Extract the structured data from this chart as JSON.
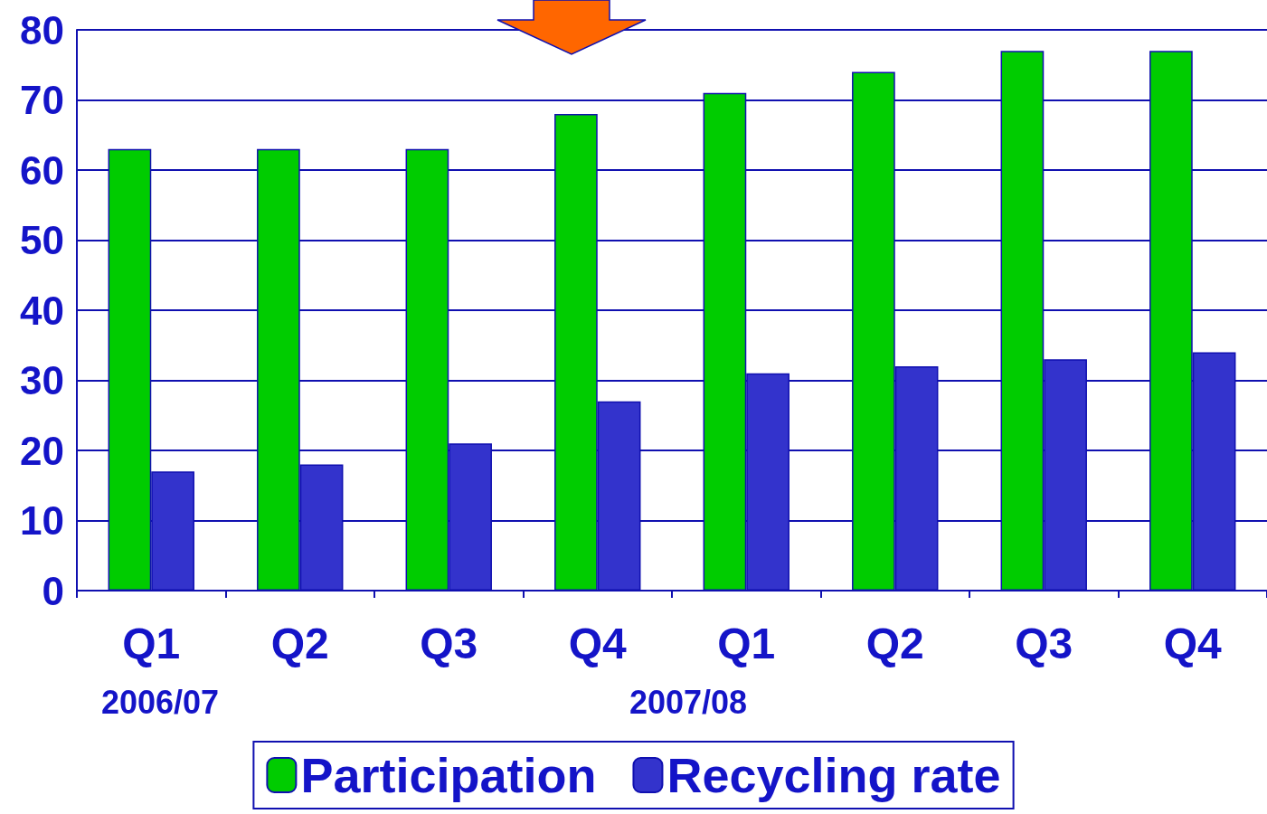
{
  "chart_data": {
    "type": "bar",
    "categories": [
      "Q1",
      "Q2",
      "Q3",
      "Q4",
      "Q1",
      "Q2",
      "Q3",
      "Q4"
    ],
    "series": [
      {
        "name": "Participation",
        "color": "#00cc00",
        "values": [
          63,
          63,
          63,
          68,
          71,
          74,
          77,
          77
        ]
      },
      {
        "name": "Recycling rate",
        "color": "#3333cc",
        "values": [
          17,
          18,
          21,
          27,
          31,
          32,
          33,
          34
        ]
      }
    ],
    "ylim": [
      0,
      80
    ],
    "yticks": [
      0,
      10,
      20,
      30,
      40,
      50,
      60,
      70,
      80
    ],
    "grid": "y",
    "legend": "bottom",
    "annotations": [
      "2006/07",
      "2007/08"
    ]
  }
}
